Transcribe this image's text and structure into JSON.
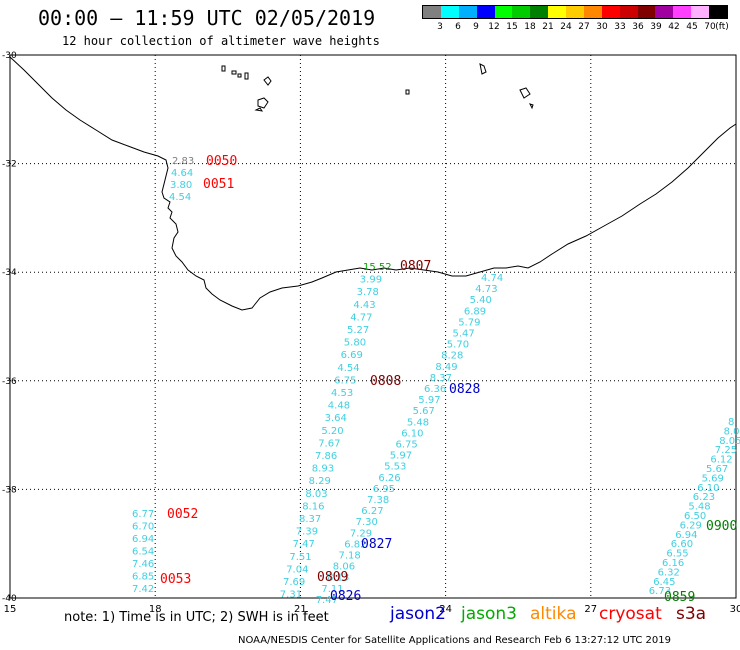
{
  "header": {
    "title": "00:00 – 11:59 UTC 02/05/2019",
    "subtitle": "12 hour collection of altimeter wave heights"
  },
  "legend": {
    "unit": "(ft)",
    "bins": [
      {
        "label": "3",
        "color": "#808080"
      },
      {
        "label": "6",
        "color": "#00ffff"
      },
      {
        "label": "9",
        "color": "#00b0ff"
      },
      {
        "label": "12",
        "color": "#0000ff"
      },
      {
        "label": "15",
        "color": "#00ff00"
      },
      {
        "label": "18",
        "color": "#00cc00"
      },
      {
        "label": "21",
        "color": "#008000"
      },
      {
        "label": "24",
        "color": "#ffff00"
      },
      {
        "label": "27",
        "color": "#ffcc00"
      },
      {
        "label": "30",
        "color": "#ff8800"
      },
      {
        "label": "33",
        "color": "#ff0000"
      },
      {
        "label": "36",
        "color": "#cc0000"
      },
      {
        "label": "39",
        "color": "#800000"
      },
      {
        "label": "42",
        "color": "#a000a0"
      },
      {
        "label": "45",
        "color": "#ff40ff"
      },
      {
        "label": "70",
        "color": "#ffb0ff"
      },
      {
        "label": "",
        "color": "#000000"
      }
    ]
  },
  "axes": {
    "lon_labels": [
      "15",
      "18",
      "21",
      "24",
      "27",
      "30"
    ],
    "lat_labels": [
      "-30",
      "-32",
      "-34",
      "-36",
      "-38",
      "-40"
    ],
    "lon_range": [
      15,
      30
    ],
    "lat_range": [
      -40,
      -30
    ]
  },
  "tracks": [
    {
      "id": "west_coast",
      "color": "#40d0e0",
      "values": [
        "2.83",
        "4.64",
        "3.80",
        "4.54"
      ],
      "first_color": "#808080"
    },
    {
      "id": "track_0807_0809",
      "color": "#40d0e0",
      "values": [
        "15.52",
        "3.99",
        "3.78",
        "4.43",
        "4.77",
        "5.27",
        "5.80",
        "6.69",
        "4.54",
        "6.75",
        "4.53",
        "4.48",
        "3.64",
        "5.20",
        "7.67",
        "7.86",
        "8.93",
        "8.29",
        "8.03",
        "8.16",
        "8.37",
        "7.39",
        "7.47",
        "7.51",
        "7.04",
        "7.69",
        "7.31"
      ],
      "first_color": "#00aa00"
    },
    {
      "id": "track_0828",
      "color": "#40d0e0",
      "values": [
        "4.74",
        "4.73",
        "5.40",
        "6.89",
        "5.79",
        "5.47",
        "5.70",
        "8.28",
        "8.49",
        "8.37",
        "6.36",
        "5.97",
        "5.67",
        "5.48",
        "6.10",
        "6.75",
        "5.97",
        "5.53",
        "6.26",
        "6.95",
        "7.38",
        "6.27",
        "7.30",
        "7.29",
        "6.82",
        "7.18",
        "8.06",
        "8.13",
        "7.11",
        "7.47"
      ]
    },
    {
      "id": "track_0052",
      "color": "#40d0e0",
      "values": [
        "6.77",
        "6.70",
        "6.94",
        "6.54",
        "7.46",
        "6.85",
        "7.42"
      ]
    },
    {
      "id": "track_0900",
      "color": "#40d0e0",
      "values": [
        "8",
        "8.0",
        "8.05",
        "7.25",
        "6.12",
        "5.67",
        "5.69",
        "6.10",
        "6.23",
        "5.48",
        "6.50",
        "6.29",
        "6.94",
        "6.60",
        "6.55",
        "6.16",
        "6.32",
        "6.45",
        "6.73"
      ]
    }
  ],
  "time_labels": [
    {
      "text": "0050",
      "color": "#ff0000"
    },
    {
      "text": "0051",
      "color": "#ff0000"
    },
    {
      "text": "0807",
      "color": "#800000"
    },
    {
      "text": "0808",
      "color": "#800000"
    },
    {
      "text": "0809",
      "color": "#800000"
    },
    {
      "text": "0828",
      "color": "#0000cc"
    },
    {
      "text": "0827",
      "color": "#0000cc"
    },
    {
      "text": "0826",
      "color": "#0000cc"
    },
    {
      "text": "0052",
      "color": "#ff0000"
    },
    {
      "text": "0053",
      "color": "#ff0000"
    },
    {
      "text": "0900",
      "color": "#008000"
    },
    {
      "text": "0859",
      "color": "#008000"
    }
  ],
  "footer": {
    "note": "note: 1) Time is in UTC; 2) SWH is in feet",
    "satellites": [
      {
        "name": "jason2",
        "color": "#0000cc"
      },
      {
        "name": "jason3",
        "color": "#00aa00"
      },
      {
        "name": "altika",
        "color": "#ff8800"
      },
      {
        "name": "cryosat",
        "color": "#ff0000"
      },
      {
        "name": "s3a",
        "color": "#800000"
      }
    ],
    "credit": "NOAA/NESDIS Center for Satellite Applications and Research    Feb  6 13:27:12 UTC 2019"
  }
}
